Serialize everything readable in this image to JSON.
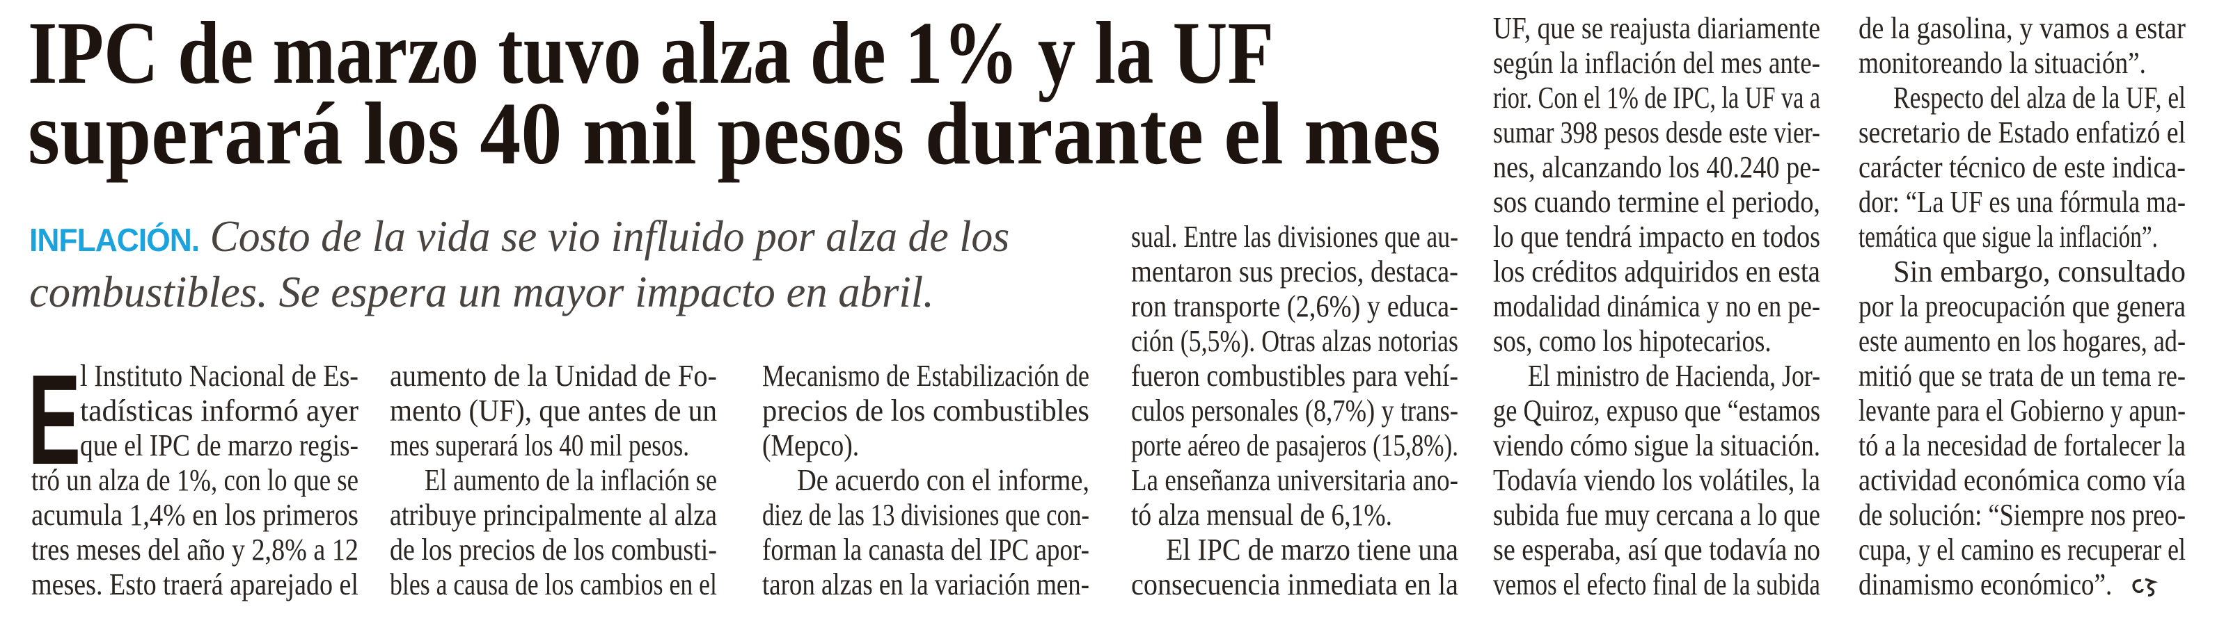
{
  "headline": {
    "line1": "IPC de marzo tuvo alza de 1% y la UF",
    "line2": "superará los 40 mil pesos durante el mes"
  },
  "subhead": {
    "kicker": "INFLACIÓN.",
    "line1": "Costo de la vida se vio influido por alza de los",
    "line2": "combustibles. Se espera un mayor impacto en abril."
  },
  "colors": {
    "kicker": "#1aa3dc",
    "headline": "#1d1410",
    "body": "#2b2521"
  },
  "body": {
    "drop_cap": "E",
    "end_mark_icon": "end-of-article-mark",
    "columns": [
      [
        {
          "indent": false,
          "dropcap": true,
          "ends": false,
          "lines": [
            "l Instituto Nacional de Es-",
            "tadísticas informó ayer",
            "que el IPC de marzo regis-",
            "tró un alza de 1%, con lo que se",
            "acumula 1,4% en los primeros",
            "tres meses del año y 2,8% a 12",
            "meses. Esto traerá aparejado el"
          ]
        }
      ],
      [
        {
          "indent": false,
          "ends": true,
          "lines": [
            "aumento de la Unidad de Fo-",
            "mento (UF), que antes de un",
            "mes superará los 40 mil pesos."
          ]
        },
        {
          "indent": true,
          "ends": false,
          "lines": [
            "El aumento de la inflación se",
            "atribuye principalmente al alza",
            "de los precios de los combusti-",
            "bles a causa de los cambios en el"
          ]
        }
      ],
      [
        {
          "indent": false,
          "ends": true,
          "lines": [
            "Mecanismo de Estabilización de",
            "precios de los combustibles",
            "(Mepco)."
          ]
        },
        {
          "indent": true,
          "ends": false,
          "lines": [
            "De acuerdo con el informe,",
            "diez de las 13 divisiones que con-",
            "forman la canasta del IPC apor-",
            "taron alzas en la variación men-"
          ]
        }
      ],
      [
        {
          "indent": false,
          "ends": true,
          "lines": [
            "sual. Entre las divisiones que au-",
            "mentaron sus precios, destaca-",
            "ron transporte (2,6%) y educa-",
            "ción (5,5%). Otras alzas notorias",
            "fueron combustibles para vehí-",
            "culos personales (8,7%) y trans-",
            "porte aéreo de pasajeros (15,8%).",
            "La enseñanza universitaria ano-",
            "tó alza mensual de 6,1%."
          ]
        },
        {
          "indent": true,
          "ends": false,
          "lines": [
            "El IPC de marzo tiene una",
            "consecuencia inmediata en la"
          ]
        }
      ],
      [
        {
          "indent": false,
          "ends": true,
          "lines": [
            "UF, que se reajusta diariamente",
            "según la inflación del mes ante-",
            "rior. Con el 1% de IPC, la UF va a",
            "sumar 398 pesos desde este vier-",
            "nes, alcanzando los 40.240 pe-",
            "sos cuando termine el periodo,",
            "lo que tendrá impacto en todos",
            "los créditos adquiridos en esta",
            "modalidad dinámica y no en pe-",
            "sos, como los hipotecarios."
          ]
        },
        {
          "indent": true,
          "ends": false,
          "lines": [
            "El ministro de Hacienda, Jor-",
            "ge Quiroz, expuso que “estamos",
            "viendo cómo sigue la situación.",
            "Todavía viendo los volátiles, la",
            "subida fue muy cercana a lo que",
            "se esperaba, así que todavía no",
            "vemos el efecto final de la subida"
          ]
        }
      ],
      [
        {
          "indent": false,
          "ends": true,
          "lines": [
            "de la gasolina, y vamos a estar",
            "monitoreando la situación”."
          ]
        },
        {
          "indent": true,
          "ends": true,
          "lines": [
            "Respecto del alza de la UF, el",
            "secretario de Estado enfatizó el",
            "carácter técnico de este indica-",
            "dor: “La UF es una fórmula ma-",
            "temática que sigue la inflación”."
          ]
        },
        {
          "indent": true,
          "ends": true,
          "endmark": true,
          "lines": [
            "Sin embargo, consultado",
            "por la preocupación que genera",
            "este aumento en los hogares, ad-",
            "mitió que se trata de un tema re-",
            "levante para el Gobierno y apun-",
            "tó a la necesidad de fortalecer la",
            "actividad económica como vía",
            "de solución: “Siempre nos preo-",
            "cupa, y el camino es recuperar el",
            "dinamismo económico”."
          ]
        }
      ]
    ]
  }
}
